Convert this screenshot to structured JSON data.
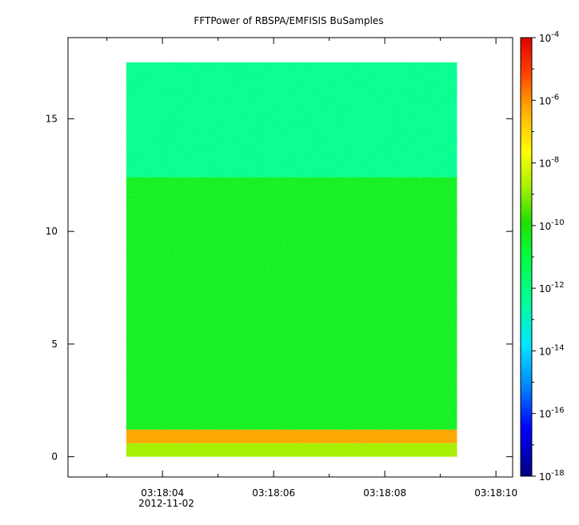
{
  "chart_data": {
    "type": "heatmap",
    "title": "FFTPower of RBSPA/EMFISIS  BuSamples",
    "xlabel": "",
    "ylabel": "",
    "x_ticks": [
      "03:18:04",
      "03:18:06",
      "03:18:08",
      "03:18:10"
    ],
    "x_date_label": "2012-11-02",
    "x_range_seconds": [
      2.3,
      10.3
    ],
    "data_x_range_seconds": [
      3.35,
      9.3
    ],
    "ylim": [
      -0.9,
      18.6
    ],
    "y_ticks": [
      0,
      5,
      10,
      15
    ],
    "data_y_range": [
      0,
      17.5
    ],
    "colorbar": {
      "scale": "log",
      "range_exponents": [
        -18,
        -4
      ],
      "tick_labels": [
        {
          "base": "10",
          "exp": "-4"
        },
        {
          "base": "10",
          "exp": "-6"
        },
        {
          "base": "10",
          "exp": "-8"
        },
        {
          "base": "10",
          "exp": "-10"
        },
        {
          "base": "10",
          "exp": "-12"
        },
        {
          "base": "10",
          "exp": "-14"
        },
        {
          "base": "10",
          "exp": "-16"
        },
        {
          "base": "10",
          "exp": "-18"
        }
      ]
    },
    "bands": [
      {
        "y_from": 12.4,
        "y_to": 17.5,
        "log_power": -12.3
      },
      {
        "y_from": 1.2,
        "y_to": 12.4,
        "log_power": -10.5
      },
      {
        "y_from": 0.6,
        "y_to": 1.2,
        "log_power": -6.2
      },
      {
        "y_from": 0.0,
        "y_to": 0.6,
        "log_power": -8.8
      }
    ]
  }
}
